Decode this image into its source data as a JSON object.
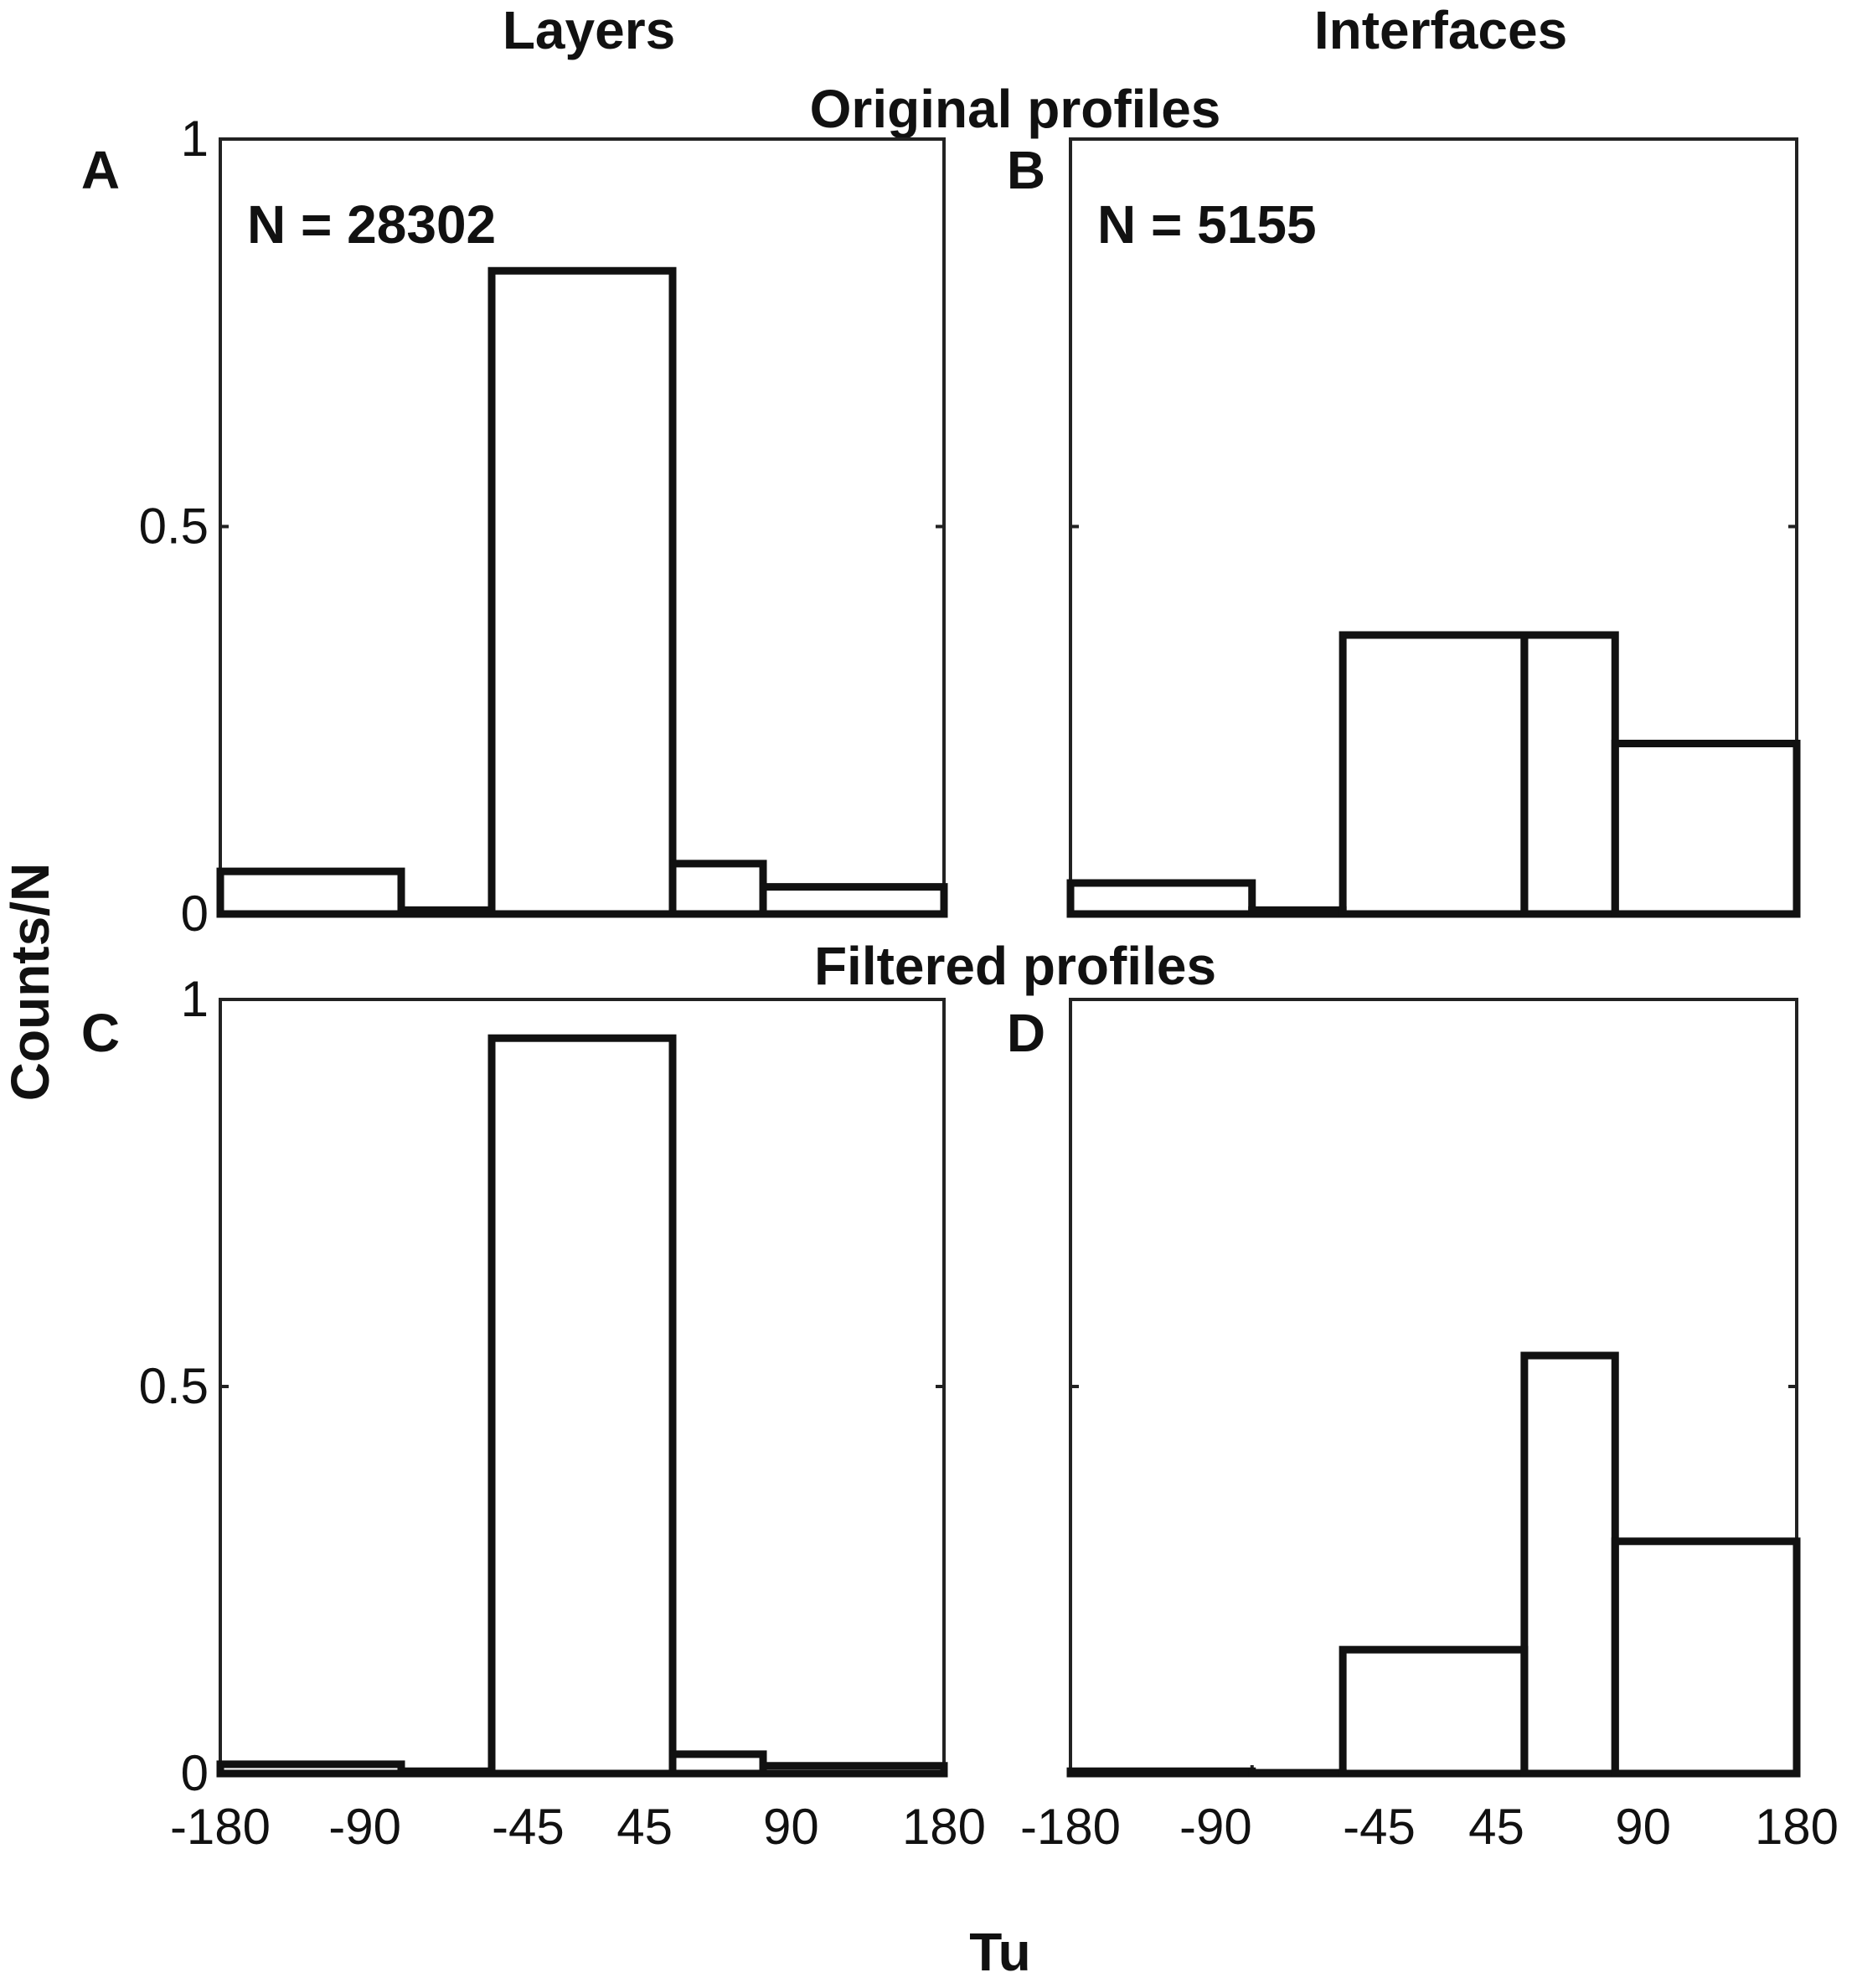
{
  "column_titles": [
    "Layers",
    "Interfaces"
  ],
  "row_titles": [
    "Original profiles",
    "Filtered profiles"
  ],
  "ylabel": "Counts/N",
  "xlabel": "Tu",
  "x_edges": [
    -180,
    -90,
    -45,
    45,
    90,
    180
  ],
  "x_tick_labels": [
    "-180",
    "-90",
    "-45",
    "45",
    "90",
    "180"
  ],
  "y_tick_labels": [
    "0",
    "0.5",
    "1"
  ],
  "colors": {
    "bar_edge": "#111111",
    "axes": "#222222",
    "background": "#ffffff"
  },
  "chart_data": [
    {
      "type": "bar",
      "panel": "A",
      "annotation": "N = 28302",
      "bin_edges": [
        -180,
        -90,
        -45,
        45,
        90,
        180
      ],
      "values": [
        0.055,
        0.005,
        0.83,
        0.065,
        0.035
      ],
      "ylim": [
        0,
        1
      ],
      "xlim": [
        -180,
        180
      ]
    },
    {
      "type": "bar",
      "panel": "B",
      "annotation": "N = 5155",
      "bin_edges": [
        -180,
        -90,
        -45,
        45,
        90,
        180
      ],
      "values": [
        0.04,
        0.005,
        0.36,
        0.36,
        0.22
      ],
      "ylim": [
        0,
        1
      ],
      "xlim": [
        -180,
        180
      ]
    },
    {
      "type": "bar",
      "panel": "C",
      "annotation": "",
      "bin_edges": [
        -180,
        -90,
        -45,
        45,
        90,
        180
      ],
      "values": [
        0.012,
        0.003,
        0.95,
        0.025,
        0.01
      ],
      "ylim": [
        0,
        1
      ],
      "xlim": [
        -180,
        180
      ]
    },
    {
      "type": "bar",
      "panel": "D",
      "annotation": "",
      "bin_edges": [
        -180,
        -90,
        -45,
        45,
        90,
        180
      ],
      "values": [
        0.003,
        0.001,
        0.16,
        0.54,
        0.3
      ],
      "ylim": [
        0,
        1
      ],
      "xlim": [
        -180,
        180
      ]
    }
  ]
}
